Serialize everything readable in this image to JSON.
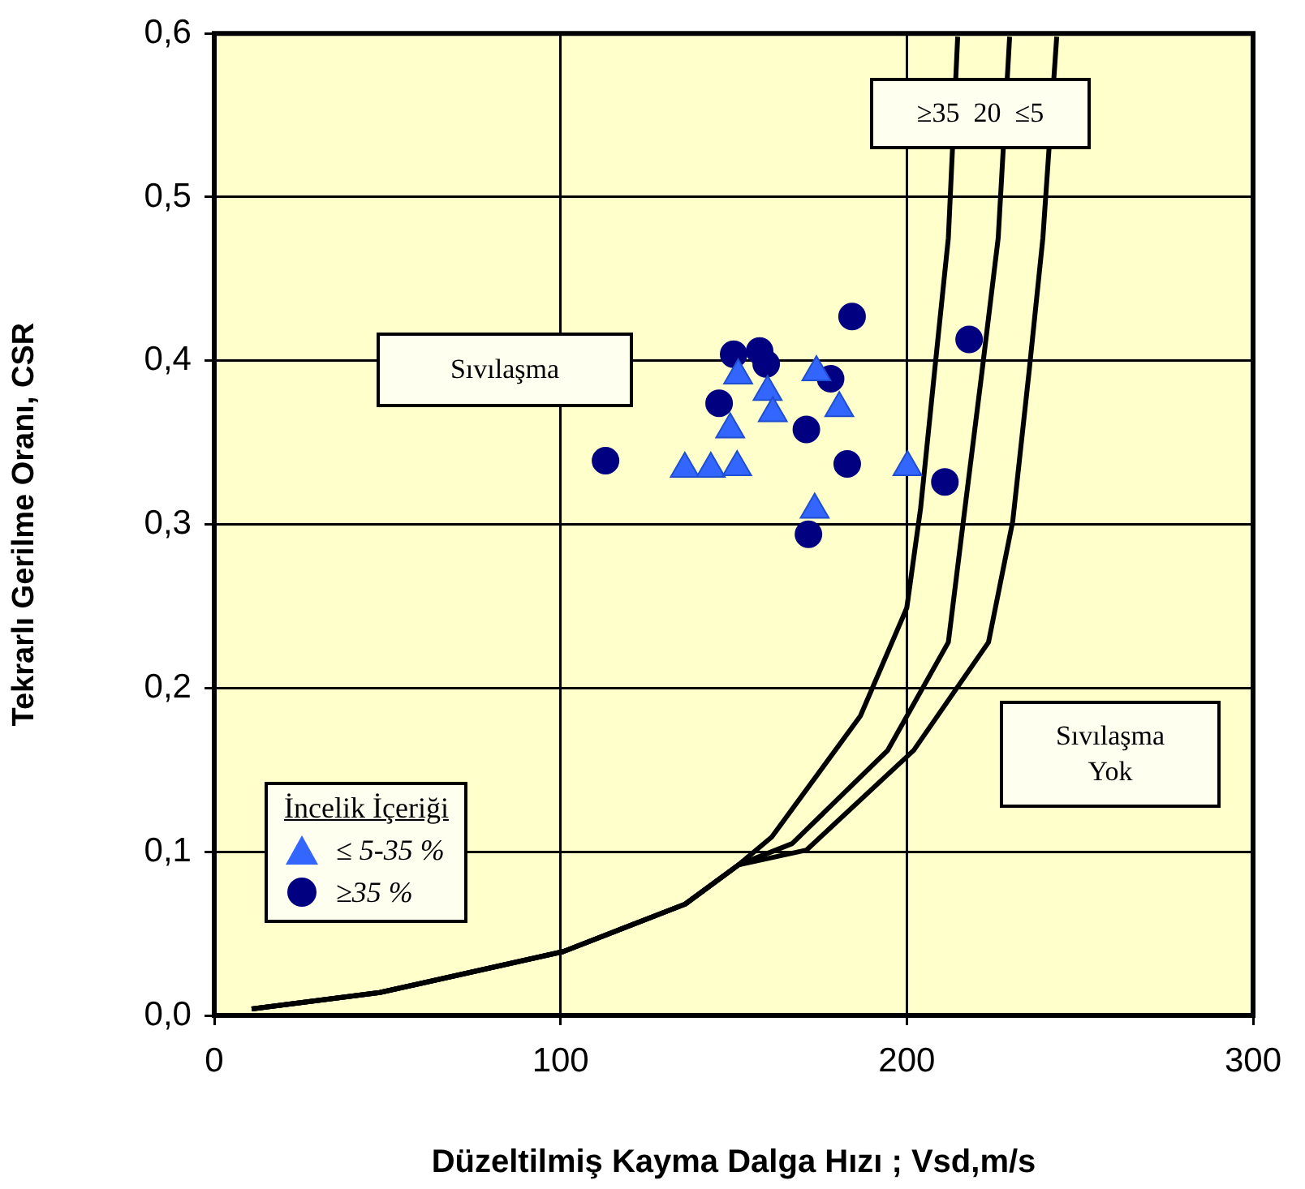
{
  "chart_data": {
    "type": "scatter",
    "xlabel": "Düzeltilmiş Kayma Dalga Hızı ; Vsd,m/s",
    "ylabel": "Tekrarlı Gerilme Oranı, CSR",
    "legend_title": "İncelik İçeriği",
    "legend": "bottom left",
    "grid": true,
    "xlim": [
      0,
      300
    ],
    "xticks": [
      0,
      100,
      200,
      300
    ],
    "ylim": [
      0,
      0.6
    ],
    "yticks": [
      {
        "value": 0,
        "label": "0,0"
      },
      {
        "value": 0.1,
        "label": "0,1"
      },
      {
        "value": 0.2,
        "label": "0,2"
      },
      {
        "value": 0.3,
        "label": "0,3"
      },
      {
        "value": 0.4,
        "label": "0,4"
      },
      {
        "value": 0.5,
        "label": "0,5"
      },
      {
        "value": 0.6,
        "label": "0,6"
      }
    ],
    "annotations": [
      "≥35  20  ≤5",
      "Sıvılaşma",
      "Sıvılaşma Yok"
    ],
    "series": [
      {
        "name": "≤ 5-35 %",
        "color": "#3366ff",
        "marker": "triangle",
        "x": [
          151.3,
          173.9,
          159.8,
          161.3,
          180.5,
          149,
          135.9,
          143.4,
          151,
          200.2,
          173.4
        ],
        "values": [
          0.391,
          0.393,
          0.381,
          0.368,
          0.371,
          0.358,
          0.334,
          0.334,
          0.335,
          0.335,
          0.309
        ]
      },
      {
        "name": "≥35 %",
        "color": "#000080",
        "marker": "circle",
        "x": [
          113,
          184.2,
          218,
          150,
          157.5,
          159.4,
          178,
          145.8,
          171,
          182.8,
          211,
          171.6
        ],
        "values": [
          0.339,
          0.427,
          0.413,
          0.404,
          0.406,
          0.398,
          0.389,
          0.374,
          0.358,
          0.337,
          0.326,
          0.294
        ]
      },
      {
        "type": "line",
        "color": "#000000",
        "marker": "none",
        "line_style": "solid",
        "x": [
          10.8,
          47.8,
          100.8,
          136,
          151.4,
          161,
          186.6,
          200,
          204,
          208,
          212,
          214.7
        ],
        "values": [
          0.004,
          0.014,
          0.039,
          0.068,
          0.092,
          0.109,
          0.183,
          0.249,
          0.31,
          0.393,
          0.475,
          0.598
        ]
      },
      {
        "type": "line",
        "color": "#000000",
        "marker": "none",
        "line_style": "solid",
        "x": [
          10.8,
          47.8,
          100.8,
          136,
          151.4,
          166.9,
          194.5,
          212,
          216.8,
          221.7,
          226.4,
          229.7
        ],
        "values": [
          0.004,
          0.014,
          0.039,
          0.068,
          0.092,
          0.105,
          0.162,
          0.228,
          0.31,
          0.393,
          0.475,
          0.598
        ]
      },
      {
        "type": "line",
        "color": "#000000",
        "marker": "none",
        "line_style": "solid",
        "x": [
          10.8,
          47.8,
          100.8,
          136,
          151.4,
          171,
          202,
          223.6,
          230.6,
          235.3,
          239.3,
          243.3
        ],
        "values": [
          0.004,
          0.014,
          0.039,
          0.068,
          0.092,
          0.101,
          0.162,
          0.228,
          0.302,
          0.393,
          0.475,
          0.598
        ]
      }
    ]
  }
}
